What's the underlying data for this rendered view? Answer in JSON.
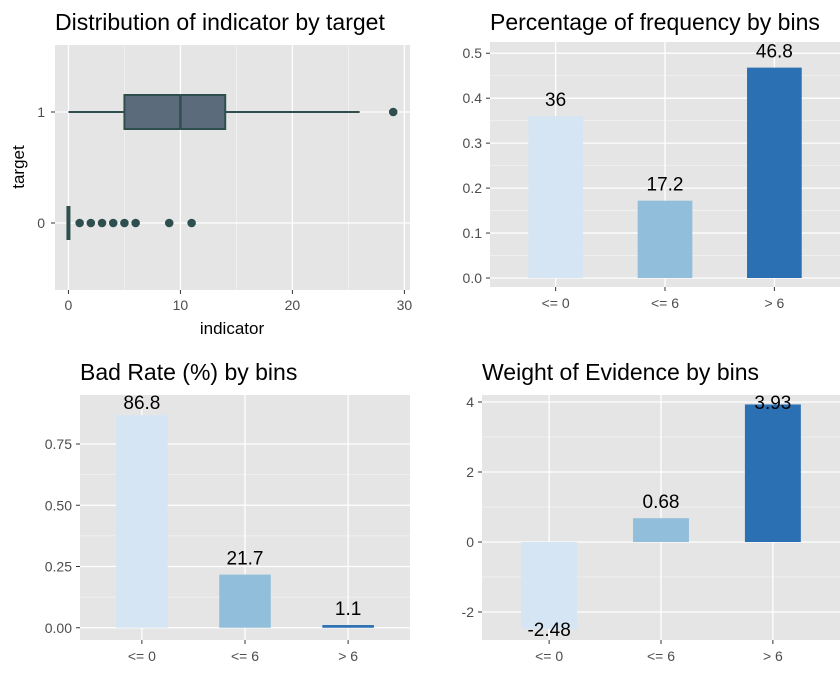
{
  "chart_data": [
    {
      "type": "boxplot",
      "title": "Distribution of indicator by target",
      "xlabel": "indicator",
      "ylabel": "target",
      "x_ticks": [
        "0",
        "10",
        "20",
        "30"
      ],
      "xlim": [
        -1.2,
        30.5
      ],
      "categories": [
        "0",
        "1"
      ],
      "groups": [
        {
          "name": "1",
          "min": 0,
          "q1": 5,
          "median": 10,
          "q3": 14,
          "max": 26,
          "outliers": [
            29
          ]
        },
        {
          "name": "0",
          "min": 0,
          "q1": 0,
          "median": 0,
          "q3": 0,
          "max": 0,
          "outliers": [
            1,
            2,
            3,
            4,
            5,
            6,
            9,
            11
          ]
        }
      ],
      "colors": {
        "box_fill": "#5b6b7b",
        "box_stroke": "#2f4f4f",
        "points": "#2f4f4f"
      }
    },
    {
      "type": "bar",
      "title": "Percentage of frequency by bins",
      "categories": [
        "<= 0",
        "<= 6",
        "> 6"
      ],
      "values": [
        0.36,
        0.172,
        0.468
      ],
      "labels": [
        "36",
        "17.2",
        "46.8"
      ],
      "y_ticks": [
        "0.0",
        "0.1",
        "0.2",
        "0.3",
        "0.4",
        "0.5"
      ],
      "ylim": [
        -0.02,
        0.525
      ],
      "colors": [
        "#d6e5f3",
        "#91bfdb",
        "#2b70b3"
      ]
    },
    {
      "type": "bar",
      "title": "Bad Rate (%) by bins",
      "categories": [
        "<= 0",
        "<= 6",
        "> 6"
      ],
      "values": [
        0.868,
        0.217,
        0.011
      ],
      "labels": [
        "86.8",
        "21.7",
        "1.1"
      ],
      "y_ticks": [
        "0.00",
        "0.25",
        "0.50",
        "0.75"
      ],
      "ylim": [
        -0.05,
        0.95
      ],
      "colors": [
        "#d6e5f3",
        "#91bfdb",
        "#2b70b3"
      ]
    },
    {
      "type": "bar",
      "title": "Weight of Evidence by bins",
      "categories": [
        "<= 0",
        "<= 6",
        "> 6"
      ],
      "values": [
        -2.48,
        0.68,
        3.93
      ],
      "labels": [
        "-2.48",
        "0.68",
        "3.93"
      ],
      "y_ticks": [
        "-2",
        "0",
        "2",
        "4"
      ],
      "ylim": [
        -2.8,
        4.2
      ],
      "colors": [
        "#d6e5f3",
        "#91bfdb",
        "#2b70b3"
      ]
    }
  ],
  "style": {
    "panel_bg": "#e5e5e5",
    "grid_major": "#ffffff",
    "grid_minor": "#f2f2f2"
  }
}
